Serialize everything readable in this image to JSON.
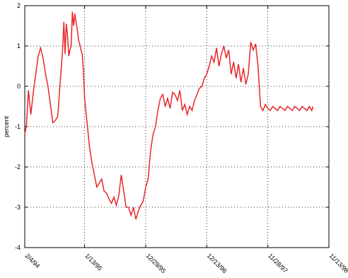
{
  "chart_data": {
    "type": "line",
    "title": "",
    "xlabel": "",
    "ylabel": "percent",
    "ylim": [
      -4,
      2
    ],
    "yticks": [
      -4,
      -3,
      -2,
      -1,
      0,
      1,
      2
    ],
    "ytick_labels": [
      "-4",
      "-3",
      "-2",
      "-1",
      "0",
      "1",
      "2"
    ],
    "xlim": [
      "1994-02-04",
      "1998-11-13"
    ],
    "xticks": [
      "1994-02-04",
      "1995-01-13",
      "1995-12-29",
      "1996-12-13",
      "1997-11-28",
      "1998-11-13"
    ],
    "xtick_labels": [
      "2/4/94",
      "1/13/95",
      "12/29/95",
      "12/13/96",
      "11/28/97",
      "11/13/98"
    ],
    "grid": true,
    "line_color": "#e8262b",
    "series": [
      {
        "x": [
          "1994-02-04",
          "1994-02-14",
          "1994-02-25",
          "1994-03-11",
          "1994-03-25",
          "1994-04-08",
          "1994-04-22",
          "1994-05-06",
          "1994-05-20",
          "1994-06-03",
          "1994-06-17",
          "1994-07-01",
          "1994-07-15",
          "1994-07-29",
          "1994-08-12",
          "1994-08-26",
          "1994-09-09",
          "1994-09-16",
          "1994-09-23",
          "1994-09-30",
          "1994-10-07",
          "1994-10-14",
          "1994-10-21",
          "1994-10-28",
          "1994-11-04",
          "1994-11-11",
          "1994-11-18",
          "1994-11-25",
          "1994-12-02",
          "1994-12-09",
          "1994-12-16",
          "1994-12-23",
          "1994-12-30",
          "1995-01-06",
          "1995-01-13",
          "1995-01-27",
          "1995-02-10",
          "1995-02-24",
          "1995-03-10",
          "1995-03-24",
          "1995-04-07",
          "1995-04-21",
          "1995-05-05",
          "1995-05-19",
          "1995-06-02",
          "1995-06-16",
          "1995-06-30",
          "1995-07-14",
          "1995-07-28",
          "1995-08-11",
          "1995-08-25",
          "1995-09-08",
          "1995-09-22",
          "1995-10-06",
          "1995-10-20",
          "1995-11-03",
          "1995-11-17",
          "1995-11-24",
          "1995-12-01",
          "1995-12-08",
          "1995-12-15",
          "1995-12-29",
          "1996-01-12",
          "1996-01-26",
          "1996-02-09",
          "1996-02-23",
          "1996-03-08",
          "1996-03-22",
          "1996-04-05",
          "1996-04-19",
          "1996-05-03",
          "1996-05-17",
          "1996-05-31",
          "1996-06-14",
          "1996-06-28",
          "1996-07-12",
          "1996-07-26",
          "1996-08-09",
          "1996-08-23",
          "1996-09-06",
          "1996-09-20",
          "1996-10-04",
          "1996-10-18",
          "1996-11-01",
          "1996-11-15",
          "1996-11-29",
          "1996-12-13",
          "1996-12-27",
          "1997-01-10",
          "1997-01-24",
          "1997-02-07",
          "1997-02-21",
          "1997-03-07",
          "1997-03-21",
          "1997-04-04",
          "1997-04-18",
          "1997-05-02",
          "1997-05-16",
          "1997-05-30",
          "1997-06-13",
          "1997-06-27",
          "1997-07-11",
          "1997-07-25",
          "1997-08-08",
          "1997-08-22",
          "1997-09-05",
          "1997-09-19",
          "1997-10-03",
          "1997-10-17",
          "1997-10-31",
          "1997-11-14",
          "1997-11-28",
          "1997-12-12",
          "1997-12-26",
          "1998-01-09",
          "1998-01-23",
          "1998-02-06",
          "1998-02-20",
          "1998-03-06",
          "1998-03-20",
          "1998-04-03",
          "1998-04-17",
          "1998-05-01",
          "1998-05-15",
          "1998-05-29",
          "1998-06-12",
          "1998-06-26",
          "1998-07-10",
          "1998-07-24",
          "1998-08-07",
          "1998-08-14"
        ],
        "values": [
          -1.2,
          -0.95,
          -0.1,
          -0.7,
          -0.15,
          0.3,
          0.75,
          0.95,
          0.7,
          0.3,
          0.0,
          -0.45,
          -0.9,
          -0.85,
          -0.75,
          0.1,
          0.9,
          1.6,
          0.8,
          1.55,
          1.3,
          0.75,
          0.9,
          1.0,
          1.85,
          1.5,
          1.8,
          1.6,
          1.4,
          1.15,
          1.05,
          0.9,
          0.8,
          0.4,
          -0.3,
          -0.9,
          -1.5,
          -1.9,
          -2.2,
          -2.5,
          -2.4,
          -2.3,
          -2.6,
          -2.65,
          -2.8,
          -2.9,
          -2.75,
          -2.95,
          -2.7,
          -2.2,
          -2.6,
          -3.0,
          -3.0,
          -3.2,
          -3.0,
          -3.3,
          -3.1,
          -3.0,
          -2.95,
          -2.9,
          -2.85,
          -2.5,
          -2.3,
          -1.6,
          -1.2,
          -1.0,
          -0.6,
          -0.3,
          -0.2,
          -0.5,
          -0.3,
          -0.55,
          -0.15,
          -0.2,
          -0.35,
          -0.1,
          -0.6,
          -0.45,
          -0.7,
          -0.5,
          -0.6,
          -0.35,
          -0.2,
          -0.05,
          0.0,
          0.2,
          0.3,
          0.5,
          0.75,
          0.6,
          0.95,
          0.5,
          0.8,
          1.0,
          0.7,
          0.9,
          0.3,
          0.6,
          0.2,
          0.55,
          0.1,
          0.45,
          0.05,
          0.3,
          1.1,
          0.9,
          1.05,
          0.5,
          -0.5,
          -0.6,
          -0.45,
          -0.55,
          -0.6,
          -0.5,
          -0.55,
          -0.6,
          -0.5,
          -0.55,
          -0.6,
          -0.5,
          -0.55,
          -0.6,
          -0.5,
          -0.55,
          -0.6,
          -0.5,
          -0.55,
          -0.6,
          -0.5,
          -0.6,
          -0.5
        ]
      }
    ]
  }
}
